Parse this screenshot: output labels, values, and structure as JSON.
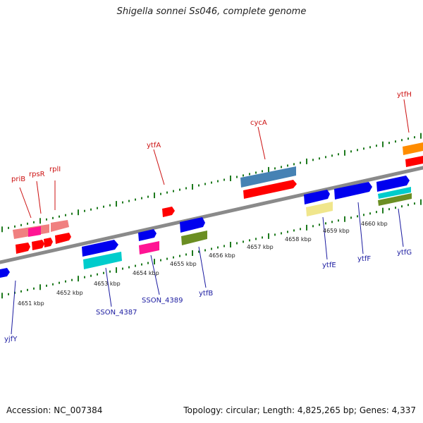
{
  "title": "Shigella sonnei Ss046, complete genome",
  "footer": {
    "accession": "Accession: NC_007384",
    "summary": "Topology: circular; Length: 4,825,265 bp; Genes: 4,337"
  },
  "colors": {
    "backbone": "#8a8a8a",
    "tick": "#1e7a1e",
    "top_label": "#cc1111",
    "bottom_label": "#1a1aa0",
    "kbp_label": "#222222"
  },
  "kbp_labels": [
    "4651 kbp",
    "4652 kbp",
    "4653 kbp",
    "4654 kbp",
    "4655 kbp",
    "4656 kbp",
    "4657 kbp",
    "4658 kbp",
    "4659 kbp",
    "4660 kbp"
  ],
  "top_gene_labels": [
    {
      "name": "priB",
      "text": "priB"
    },
    {
      "name": "rpsR",
      "text": "rpsR"
    },
    {
      "name": "rplI",
      "text": "rplI"
    },
    {
      "name": "ytfA",
      "text": "ytfA"
    },
    {
      "name": "cycA",
      "text": "cycA"
    },
    {
      "name": "ytfH",
      "text": "ytfH"
    }
  ],
  "bottom_gene_labels": [
    {
      "name": "yjfY",
      "text": "yjfY"
    },
    {
      "name": "SSON_4387",
      "text": "SSON_4387"
    },
    {
      "name": "SSON_4389",
      "text": "SSON_4389"
    },
    {
      "name": "ytfB",
      "text": "ytfB"
    },
    {
      "name": "ytfE",
      "text": "ytfE"
    },
    {
      "name": "ytfF",
      "text": "ytfF"
    },
    {
      "name": "ytfG",
      "text": "ytfG"
    }
  ],
  "feature_colors": {
    "cds": "#ff0000",
    "gene": "#0000ee",
    "rrna_pink": "#f08080",
    "magenta": "#ff1493",
    "cyan": "#00cccc",
    "steelblue": "#4682b4",
    "olive": "#6b8e23",
    "khaki": "#f0e68c",
    "orange": "#ff8c00"
  }
}
